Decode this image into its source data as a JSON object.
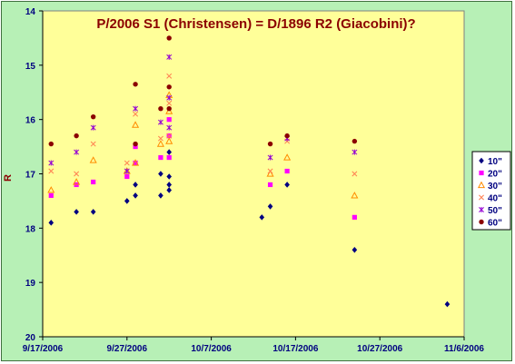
{
  "chart_data": {
    "type": "scatter",
    "title": "P/2006 S1 (Christensen) = D/1896 R2 (Giacobini)?",
    "xlabel": "",
    "ylabel": "R",
    "x_range": [
      "2006-09-17",
      "2006-11-06"
    ],
    "x_ticks": [
      "9/17/2006",
      "9/27/2006",
      "10/7/2006",
      "10/17/2006",
      "10/27/2006",
      "11/6/2006"
    ],
    "y_range": [
      14,
      20
    ],
    "y_inverted": true,
    "y_ticks": [
      "14",
      "15",
      "16",
      "17",
      "18",
      "19",
      "20"
    ],
    "grid": false,
    "legend_position": "right",
    "colors": {
      "plot_bg": "#ffff99",
      "frame_bg": "#b7f0b6",
      "title": "#8b0000",
      "ticks": "#000080"
    },
    "series": [
      {
        "name": "10\"",
        "marker": "diamond",
        "color": "#000080",
        "points": [
          {
            "x": "2006-09-18",
            "y": 17.9
          },
          {
            "x": "2006-09-21",
            "y": 17.7
          },
          {
            "x": "2006-09-23",
            "y": 17.7
          },
          {
            "x": "2006-09-27",
            "y": 17.5
          },
          {
            "x": "2006-09-28",
            "y": 17.4
          },
          {
            "x": "2006-09-28",
            "y": 17.2
          },
          {
            "x": "2006-10-01",
            "y": 17.4
          },
          {
            "x": "2006-10-01",
            "y": 17.0
          },
          {
            "x": "2006-10-02",
            "y": 17.3
          },
          {
            "x": "2006-10-02",
            "y": 17.2
          },
          {
            "x": "2006-10-02",
            "y": 17.05
          },
          {
            "x": "2006-10-02",
            "y": 16.6
          },
          {
            "x": "2006-10-13",
            "y": 17.8
          },
          {
            "x": "2006-10-14",
            "y": 17.6
          },
          {
            "x": "2006-10-16",
            "y": 17.2
          },
          {
            "x": "2006-10-24",
            "y": 18.4
          },
          {
            "x": "2006-11-04",
            "y": 19.4
          }
        ]
      },
      {
        "name": "20\"",
        "marker": "square",
        "color": "#ff00ff",
        "points": [
          {
            "x": "2006-09-18",
            "y": 17.4
          },
          {
            "x": "2006-09-21",
            "y": 17.2
          },
          {
            "x": "2006-09-23",
            "y": 17.15
          },
          {
            "x": "2006-09-27",
            "y": 17.05
          },
          {
            "x": "2006-09-28",
            "y": 16.8
          },
          {
            "x": "2006-09-28",
            "y": 16.5
          },
          {
            "x": "2006-10-01",
            "y": 16.7
          },
          {
            "x": "2006-10-02",
            "y": 16.3
          },
          {
            "x": "2006-10-02",
            "y": 16.0
          },
          {
            "x": "2006-10-02",
            "y": 16.7
          },
          {
            "x": "2006-10-14",
            "y": 17.2
          },
          {
            "x": "2006-10-16",
            "y": 16.95
          },
          {
            "x": "2006-10-24",
            "y": 17.8
          }
        ]
      },
      {
        "name": "30\"",
        "marker": "triangle",
        "color": "#ff8c00",
        "points": [
          {
            "x": "2006-09-18",
            "y": 17.3
          },
          {
            "x": "2006-09-21",
            "y": 17.15
          },
          {
            "x": "2006-09-23",
            "y": 16.75
          },
          {
            "x": "2006-09-27",
            "y": 16.95
          },
          {
            "x": "2006-09-28",
            "y": 16.1
          },
          {
            "x": "2006-09-28",
            "y": 16.8
          },
          {
            "x": "2006-10-01",
            "y": 16.45
          },
          {
            "x": "2006-10-02",
            "y": 15.85
          },
          {
            "x": "2006-10-02",
            "y": 15.55
          },
          {
            "x": "2006-10-02",
            "y": 16.4
          },
          {
            "x": "2006-10-14",
            "y": 17.0
          },
          {
            "x": "2006-10-16",
            "y": 16.7
          },
          {
            "x": "2006-10-24",
            "y": 17.4
          }
        ]
      },
      {
        "name": "40\"",
        "marker": "x",
        "color": "#ff7f50",
        "points": [
          {
            "x": "2006-09-18",
            "y": 16.95
          },
          {
            "x": "2006-09-21",
            "y": 17.0
          },
          {
            "x": "2006-09-23",
            "y": 16.45
          },
          {
            "x": "2006-09-27",
            "y": 16.8
          },
          {
            "x": "2006-09-28",
            "y": 15.9
          },
          {
            "x": "2006-10-01",
            "y": 16.35
          },
          {
            "x": "2006-10-02",
            "y": 15.7
          },
          {
            "x": "2006-10-02",
            "y": 15.2
          },
          {
            "x": "2006-10-02",
            "y": 16.3
          },
          {
            "x": "2006-10-14",
            "y": 16.95
          },
          {
            "x": "2006-10-16",
            "y": 16.4
          },
          {
            "x": "2006-10-24",
            "y": 17.0
          }
        ]
      },
      {
        "name": "50\"",
        "marker": "star",
        "color": "#9400d3",
        "points": [
          {
            "x": "2006-09-18",
            "y": 16.8
          },
          {
            "x": "2006-09-21",
            "y": 16.6
          },
          {
            "x": "2006-09-23",
            "y": 16.15
          },
          {
            "x": "2006-09-27",
            "y": 16.95
          },
          {
            "x": "2006-09-28",
            "y": 15.8
          },
          {
            "x": "2006-10-01",
            "y": 16.05
          },
          {
            "x": "2006-10-02",
            "y": 15.6
          },
          {
            "x": "2006-10-02",
            "y": 14.85
          },
          {
            "x": "2006-10-02",
            "y": 16.15
          },
          {
            "x": "2006-10-14",
            "y": 16.7
          },
          {
            "x": "2006-10-16",
            "y": 16.35
          },
          {
            "x": "2006-10-24",
            "y": 16.6
          }
        ]
      },
      {
        "name": "60\"",
        "marker": "circle",
        "color": "#8b0000",
        "points": [
          {
            "x": "2006-09-18",
            "y": 16.45
          },
          {
            "x": "2006-09-21",
            "y": 16.3
          },
          {
            "x": "2006-09-23",
            "y": 15.95
          },
          {
            "x": "2006-09-28",
            "y": 15.35
          },
          {
            "x": "2006-09-28",
            "y": 16.45
          },
          {
            "x": "2006-10-01",
            "y": 15.8
          },
          {
            "x": "2006-10-02",
            "y": 15.4
          },
          {
            "x": "2006-10-02",
            "y": 14.5
          },
          {
            "x": "2006-10-02",
            "y": 15.8
          },
          {
            "x": "2006-10-14",
            "y": 16.45
          },
          {
            "x": "2006-10-16",
            "y": 16.3
          },
          {
            "x": "2006-10-24",
            "y": 16.4
          }
        ]
      }
    ]
  }
}
